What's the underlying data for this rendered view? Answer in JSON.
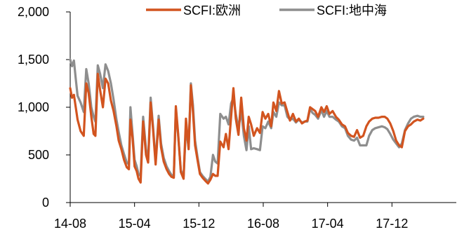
{
  "chart_data": {
    "type": "line",
    "title": "",
    "xlabel": "",
    "ylabel": "",
    "ylim": [
      0,
      2000
    ],
    "yticks": [
      {
        "value": 0,
        "label": "0"
      },
      {
        "value": 500,
        "label": "500"
      },
      {
        "value": 1000,
        "label": "1,000"
      },
      {
        "value": 1500,
        "label": "1,500"
      },
      {
        "value": 2000,
        "label": "2,000"
      }
    ],
    "xlim": [
      "2014-08",
      "2018-08"
    ],
    "xticks": [
      {
        "value": "2014-08",
        "label": "14-08"
      },
      {
        "value": "2015-04",
        "label": "15-04"
      },
      {
        "value": "2015-12",
        "label": "15-12"
      },
      {
        "value": "2016-08",
        "label": "16-08"
      },
      {
        "value": "2017-04",
        "label": "17-04"
      },
      {
        "value": "2017-12",
        "label": "17-12"
      }
    ],
    "grid": false,
    "legend_position": "top",
    "series": [
      {
        "name": "SCFI:欧洲",
        "color": "#d2541f",
        "points": [
          [
            "2014-08-01",
            1200
          ],
          [
            "2014-08-08",
            1100
          ],
          [
            "2014-08-15",
            1130
          ],
          [
            "2014-08-22",
            1000
          ],
          [
            "2014-08-29",
            870
          ],
          [
            "2014-09-10",
            750
          ],
          [
            "2014-09-22",
            700
          ],
          [
            "2014-10-01",
            1250
          ],
          [
            "2014-10-10",
            1150
          ],
          [
            "2014-10-20",
            900
          ],
          [
            "2014-10-29",
            720
          ],
          [
            "2014-11-05",
            700
          ],
          [
            "2014-11-14",
            1350
          ],
          [
            "2014-11-23",
            1180
          ],
          [
            "2014-12-03",
            1000
          ],
          [
            "2014-12-13",
            1300
          ],
          [
            "2014-12-23",
            1250
          ],
          [
            "2015-01-03",
            1070
          ],
          [
            "2015-01-13",
            960
          ],
          [
            "2015-01-24",
            800
          ],
          [
            "2015-02-02",
            650
          ],
          [
            "2015-02-12",
            560
          ],
          [
            "2015-02-22",
            450
          ],
          [
            "2015-03-02",
            370
          ],
          [
            "2015-03-10",
            350
          ],
          [
            "2015-03-16",
            870
          ],
          [
            "2015-03-24",
            680
          ],
          [
            "2015-04-01",
            380
          ],
          [
            "2015-04-09",
            330
          ],
          [
            "2015-04-16",
            250
          ],
          [
            "2015-04-24",
            210
          ],
          [
            "2015-05-03",
            850
          ],
          [
            "2015-05-14",
            500
          ],
          [
            "2015-05-22",
            420
          ],
          [
            "2015-06-01",
            1050
          ],
          [
            "2015-06-10",
            770
          ],
          [
            "2015-06-20",
            400
          ],
          [
            "2015-07-01",
            870
          ],
          [
            "2015-07-10",
            580
          ],
          [
            "2015-07-20",
            430
          ],
          [
            "2015-07-31",
            350
          ],
          [
            "2015-08-10",
            300
          ],
          [
            "2015-08-19",
            270
          ],
          [
            "2015-08-28",
            260
          ],
          [
            "2015-09-05",
            1010
          ],
          [
            "2015-09-14",
            720
          ],
          [
            "2015-09-24",
            320
          ],
          [
            "2015-10-04",
            250
          ],
          [
            "2015-10-13",
            880
          ],
          [
            "2015-10-23",
            560
          ],
          [
            "2015-11-01",
            1230
          ],
          [
            "2015-11-09",
            950
          ],
          [
            "2015-11-17",
            600
          ],
          [
            "2015-11-26",
            450
          ],
          [
            "2015-12-05",
            300
          ],
          [
            "2015-12-15",
            260
          ],
          [
            "2015-12-25",
            230
          ],
          [
            "2016-01-05",
            200
          ],
          [
            "2016-01-14",
            240
          ],
          [
            "2016-01-24",
            300
          ],
          [
            "2016-02-02",
            280
          ],
          [
            "2016-02-11",
            280
          ],
          [
            "2016-02-21",
            640
          ],
          [
            "2016-03-03",
            580
          ],
          [
            "2016-03-12",
            720
          ],
          [
            "2016-03-22",
            560
          ],
          [
            "2016-04-01",
            900
          ],
          [
            "2016-04-10",
            1200
          ],
          [
            "2016-04-19",
            880
          ],
          [
            "2016-04-29",
            710
          ],
          [
            "2016-05-09",
            1100
          ],
          [
            "2016-05-19",
            780
          ],
          [
            "2016-05-29",
            650
          ],
          [
            "2016-06-07",
            900
          ],
          [
            "2016-06-16",
            820
          ],
          [
            "2016-06-26",
            700
          ],
          [
            "2016-07-08",
            780
          ],
          [
            "2016-07-19",
            730
          ],
          [
            "2016-07-29",
            950
          ],
          [
            "2016-08-09",
            880
          ],
          [
            "2016-08-20",
            930
          ],
          [
            "2016-08-31",
            800
          ],
          [
            "2016-09-09",
            1050
          ],
          [
            "2016-09-20",
            960
          ],
          [
            "2016-09-30",
            1170
          ],
          [
            "2016-10-10",
            1040
          ],
          [
            "2016-10-21",
            1050
          ],
          [
            "2016-11-01",
            950
          ],
          [
            "2016-11-11",
            860
          ],
          [
            "2016-11-22",
            930
          ],
          [
            "2016-12-03",
            850
          ],
          [
            "2016-12-14",
            880
          ],
          [
            "2016-12-26",
            830
          ],
          [
            "2017-01-06",
            850
          ],
          [
            "2017-01-16",
            860
          ],
          [
            "2017-01-26",
            1000
          ],
          [
            "2017-02-05",
            980
          ],
          [
            "2017-02-15",
            960
          ],
          [
            "2017-02-26",
            900
          ],
          [
            "2017-03-08",
            1000
          ],
          [
            "2017-03-18",
            950
          ],
          [
            "2017-03-28",
            1010
          ],
          [
            "2017-04-08",
            930
          ],
          [
            "2017-04-20",
            960
          ],
          [
            "2017-05-02",
            900
          ],
          [
            "2017-05-13",
            870
          ],
          [
            "2017-05-25",
            820
          ],
          [
            "2017-06-06",
            800
          ],
          [
            "2017-06-17",
            730
          ],
          [
            "2017-06-29",
            700
          ],
          [
            "2017-07-10",
            690
          ],
          [
            "2017-07-21",
            760
          ],
          [
            "2017-08-02",
            680
          ],
          [
            "2017-08-14",
            700
          ],
          [
            "2017-08-26",
            800
          ],
          [
            "2017-09-06",
            850
          ],
          [
            "2017-09-18",
            880
          ],
          [
            "2017-09-29",
            890
          ],
          [
            "2017-10-11",
            890
          ],
          [
            "2017-10-24",
            900
          ],
          [
            "2017-11-04",
            900
          ],
          [
            "2017-11-14",
            880
          ],
          [
            "2017-11-25",
            830
          ],
          [
            "2017-12-06",
            750
          ],
          [
            "2017-12-17",
            650
          ],
          [
            "2017-12-28",
            600
          ],
          [
            "2018-01-08",
            580
          ],
          [
            "2018-01-20",
            750
          ],
          [
            "2018-02-01",
            800
          ],
          [
            "2018-02-12",
            820
          ],
          [
            "2018-02-23",
            850
          ],
          [
            "2018-03-06",
            870
          ],
          [
            "2018-03-17",
            860
          ],
          [
            "2018-03-28",
            880
          ]
        ]
      },
      {
        "name": "SCFI:地中海",
        "color": "#8e8e8e",
        "points": [
          [
            "2014-08-01",
            1500
          ],
          [
            "2014-08-08",
            1430
          ],
          [
            "2014-08-15",
            1490
          ],
          [
            "2014-08-22",
            1300
          ],
          [
            "2014-08-29",
            1120
          ],
          [
            "2014-09-10",
            1050
          ],
          [
            "2014-09-22",
            950
          ],
          [
            "2014-10-01",
            1400
          ],
          [
            "2014-10-10",
            1250
          ],
          [
            "2014-10-20",
            1000
          ],
          [
            "2014-10-29",
            900
          ],
          [
            "2014-11-05",
            850
          ],
          [
            "2014-11-14",
            1440
          ],
          [
            "2014-11-23",
            1350
          ],
          [
            "2014-12-03",
            1200
          ],
          [
            "2014-12-13",
            1450
          ],
          [
            "2014-12-23",
            1380
          ],
          [
            "2015-01-03",
            1250
          ],
          [
            "2015-01-13",
            1080
          ],
          [
            "2015-01-24",
            870
          ],
          [
            "2015-02-02",
            740
          ],
          [
            "2015-02-12",
            600
          ],
          [
            "2015-02-22",
            510
          ],
          [
            "2015-03-02",
            420
          ],
          [
            "2015-03-10",
            400
          ],
          [
            "2015-03-16",
            1000
          ],
          [
            "2015-03-24",
            720
          ],
          [
            "2015-04-01",
            450
          ],
          [
            "2015-04-09",
            380
          ],
          [
            "2015-04-16",
            300
          ],
          [
            "2015-04-24",
            280
          ],
          [
            "2015-05-03",
            900
          ],
          [
            "2015-05-14",
            560
          ],
          [
            "2015-05-22",
            450
          ],
          [
            "2015-06-01",
            1100
          ],
          [
            "2015-06-10",
            800
          ],
          [
            "2015-06-20",
            430
          ],
          [
            "2015-07-01",
            910
          ],
          [
            "2015-07-10",
            620
          ],
          [
            "2015-07-20",
            470
          ],
          [
            "2015-07-31",
            380
          ],
          [
            "2015-08-10",
            330
          ],
          [
            "2015-08-19",
            290
          ],
          [
            "2015-08-28",
            280
          ],
          [
            "2015-09-05",
            980
          ],
          [
            "2015-09-14",
            700
          ],
          [
            "2015-09-24",
            340
          ],
          [
            "2015-10-04",
            270
          ],
          [
            "2015-10-13",
            780
          ],
          [
            "2015-10-23",
            580
          ],
          [
            "2015-11-01",
            1250
          ],
          [
            "2015-11-09",
            1020
          ],
          [
            "2015-11-17",
            650
          ],
          [
            "2015-11-26",
            480
          ],
          [
            "2015-12-05",
            320
          ],
          [
            "2015-12-15",
            280
          ],
          [
            "2015-12-25",
            250
          ],
          [
            "2016-01-05",
            220
          ],
          [
            "2016-01-14",
            270
          ],
          [
            "2016-01-24",
            500
          ],
          [
            "2016-02-02",
            430
          ],
          [
            "2016-02-11",
            410
          ],
          [
            "2016-02-21",
            930
          ],
          [
            "2016-03-03",
            880
          ],
          [
            "2016-03-12",
            900
          ],
          [
            "2016-03-22",
            820
          ],
          [
            "2016-04-01",
            1040
          ],
          [
            "2016-04-10",
            1100
          ],
          [
            "2016-04-19",
            930
          ],
          [
            "2016-04-29",
            780
          ],
          [
            "2016-05-09",
            960
          ],
          [
            "2016-05-19",
            700
          ],
          [
            "2016-05-29",
            550
          ],
          [
            "2016-06-07",
            800
          ],
          [
            "2016-06-16",
            560
          ],
          [
            "2016-06-26",
            570
          ],
          [
            "2016-07-08",
            560
          ],
          [
            "2016-07-19",
            550
          ],
          [
            "2016-07-29",
            800
          ],
          [
            "2016-08-09",
            780
          ],
          [
            "2016-08-20",
            850
          ],
          [
            "2016-08-31",
            780
          ],
          [
            "2016-09-09",
            950
          ],
          [
            "2016-09-20",
            900
          ],
          [
            "2016-09-30",
            1050
          ],
          [
            "2016-10-10",
            1020
          ],
          [
            "2016-10-21",
            1020
          ],
          [
            "2016-11-01",
            900
          ],
          [
            "2016-11-11",
            870
          ],
          [
            "2016-11-22",
            880
          ],
          [
            "2016-12-03",
            840
          ],
          [
            "2016-12-14",
            870
          ],
          [
            "2016-12-26",
            840
          ],
          [
            "2017-01-06",
            850
          ],
          [
            "2017-01-16",
            850
          ],
          [
            "2017-01-26",
            980
          ],
          [
            "2017-02-05",
            940
          ],
          [
            "2017-02-15",
            920
          ],
          [
            "2017-02-26",
            880
          ],
          [
            "2017-03-08",
            970
          ],
          [
            "2017-03-18",
            900
          ],
          [
            "2017-03-28",
            960
          ],
          [
            "2017-04-08",
            900
          ],
          [
            "2017-04-20",
            900
          ],
          [
            "2017-05-02",
            870
          ],
          [
            "2017-05-13",
            850
          ],
          [
            "2017-05-25",
            800
          ],
          [
            "2017-06-06",
            780
          ],
          [
            "2017-06-17",
            700
          ],
          [
            "2017-06-29",
            660
          ],
          [
            "2017-07-10",
            650
          ],
          [
            "2017-07-21",
            680
          ],
          [
            "2017-08-02",
            600
          ],
          [
            "2017-08-14",
            600
          ],
          [
            "2017-08-26",
            600
          ],
          [
            "2017-09-06",
            700
          ],
          [
            "2017-09-18",
            760
          ],
          [
            "2017-09-29",
            780
          ],
          [
            "2017-10-11",
            790
          ],
          [
            "2017-10-24",
            800
          ],
          [
            "2017-11-04",
            790
          ],
          [
            "2017-11-14",
            770
          ],
          [
            "2017-11-25",
            720
          ],
          [
            "2017-12-06",
            660
          ],
          [
            "2017-12-17",
            620
          ],
          [
            "2017-12-28",
            580
          ],
          [
            "2018-01-08",
            620
          ],
          [
            "2018-01-20",
            760
          ],
          [
            "2018-02-01",
            830
          ],
          [
            "2018-02-12",
            880
          ],
          [
            "2018-02-23",
            900
          ],
          [
            "2018-03-06",
            910
          ],
          [
            "2018-03-17",
            900
          ],
          [
            "2018-03-28",
            900
          ]
        ]
      }
    ]
  }
}
